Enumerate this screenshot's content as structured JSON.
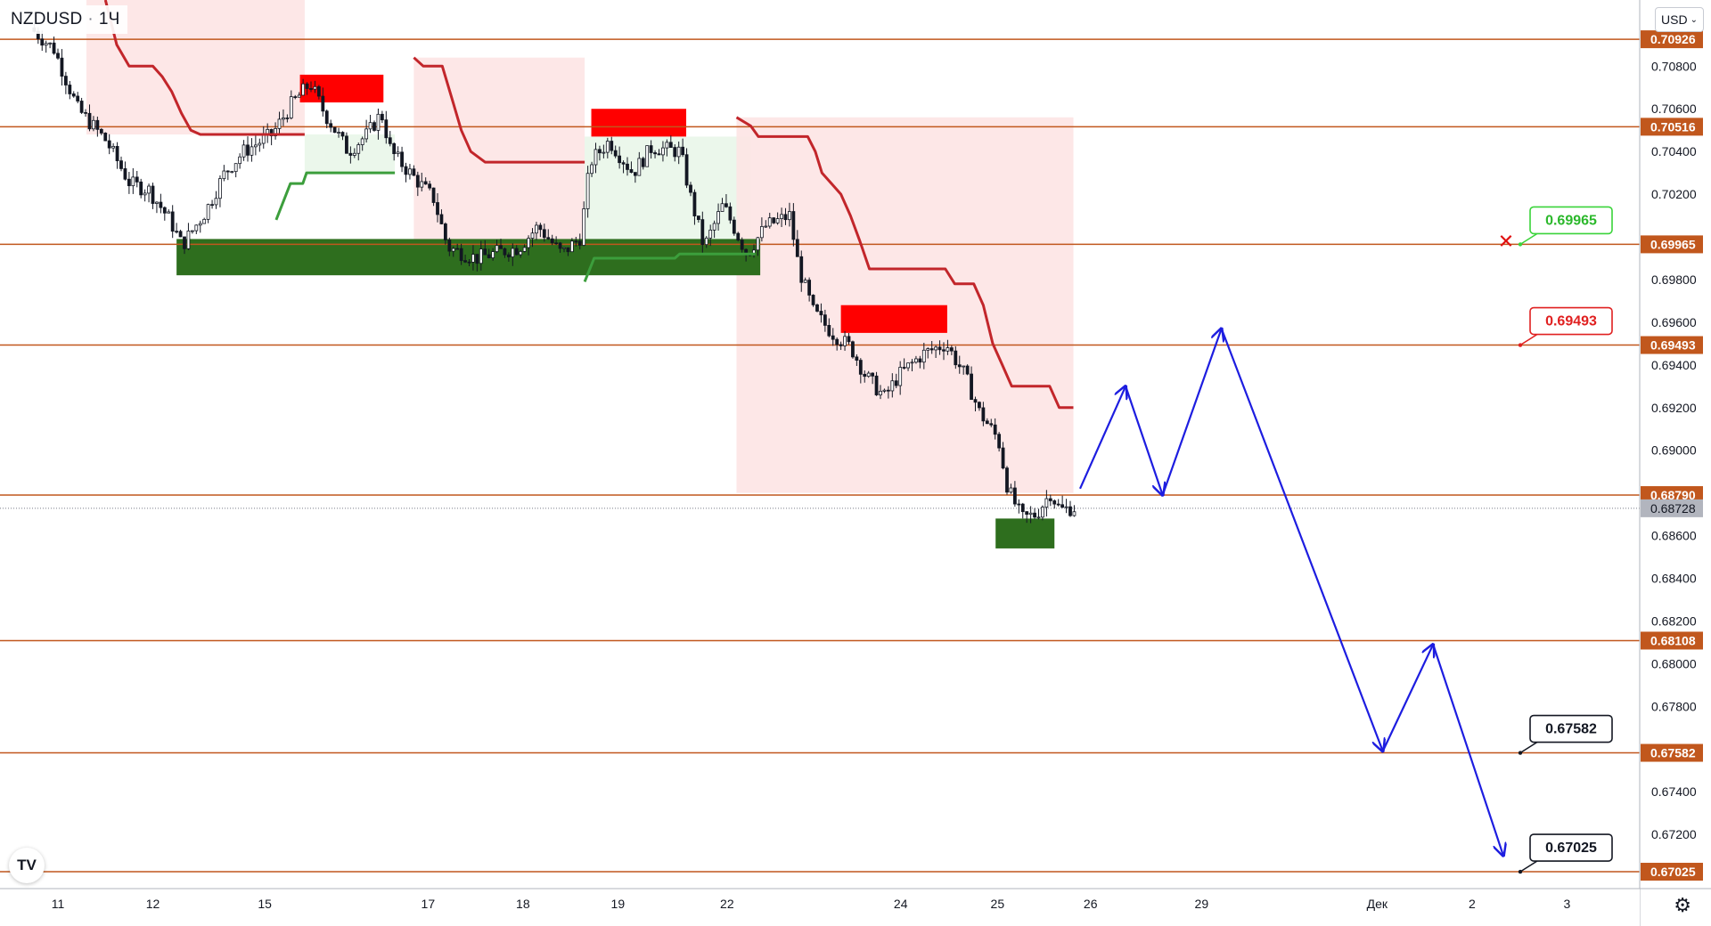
{
  "symbol": {
    "ticker": "NZDUSD",
    "separator": "·",
    "interval": "1Ч"
  },
  "currency": {
    "label": "USD",
    "chevron": "⌄"
  },
  "logo_text": "TV",
  "settings_icon": "gear-icon",
  "colors": {
    "level_line": "#c1571d",
    "level_tag_bg": "#c1571d",
    "current_tag_bg": "#b2b5be",
    "supertrend_down": "#c2262b",
    "supertrend_up": "#3c9e3c",
    "bear_fill": "#fde4e4",
    "bull_fill": "#e9f6e9",
    "supply_zone": "#ff0000",
    "demand_zone": "#2e6e1e",
    "projection": "#1d1de0",
    "candles": "#131722"
  },
  "chart_data": {
    "type": "candlestick",
    "symbol": "NZDUSD",
    "interval": "1Ч",
    "y_axis": {
      "min": 0.6695,
      "max": 0.7111,
      "tick_labels": [
        "0.70800",
        "0.70600",
        "0.70400",
        "0.70200",
        "0.69800",
        "0.69600",
        "0.69400",
        "0.69200",
        "0.69000",
        "0.68600",
        "0.68400",
        "0.68200",
        "0.68000",
        "0.67800",
        "0.67400",
        "0.67200"
      ],
      "tick_values": [
        0.708,
        0.706,
        0.704,
        0.702,
        0.698,
        0.696,
        0.694,
        0.692,
        0.69,
        0.686,
        0.684,
        0.682,
        0.68,
        0.678,
        0.674,
        0.672
      ]
    },
    "x_axis": {
      "labels": [
        "11",
        "12",
        "15",
        "17",
        "18",
        "19",
        "22",
        "24",
        "25",
        "26",
        "29",
        "Дек",
        "2",
        "3"
      ],
      "positions": [
        0.0,
        1.0,
        2.18,
        3.9,
        4.9,
        5.9,
        7.05,
        8.88,
        9.9,
        10.88,
        12.05,
        13.9,
        14.9,
        15.9
      ]
    },
    "levels": [
      {
        "label": "0.70926",
        "value": 0.70926
      },
      {
        "label": "0.70516",
        "value": 0.70516
      },
      {
        "label": "0.69965",
        "value": 0.69965
      },
      {
        "label": "0.69493",
        "value": 0.69493
      },
      {
        "label": "0.68790",
        "value": 0.6879
      },
      {
        "label": "0.68108",
        "value": 0.68108
      },
      {
        "label": "0.67582",
        "value": 0.67582
      },
      {
        "label": "0.67025",
        "value": 0.67025
      }
    ],
    "current_price": {
      "label": "0.68728",
      "value": 0.68728
    },
    "callouts": [
      {
        "label": "0.69965",
        "value": 0.69965,
        "style": "green",
        "marker": "✕"
      },
      {
        "label": "0.69493",
        "value": 0.69493,
        "style": "red"
      },
      {
        "label": "0.67582",
        "value": 0.67582,
        "style": "black"
      },
      {
        "label": "0.67025",
        "value": 0.67025,
        "style": "black"
      }
    ],
    "supply_zones": [
      {
        "x0": 2.55,
        "x1": 3.43,
        "y0": 0.7063,
        "y1": 0.7076
      },
      {
        "x0": 5.62,
        "x1": 6.62,
        "y0": 0.7047,
        "y1": 0.706
      },
      {
        "x0": 8.25,
        "x1": 9.37,
        "y0": 0.6955,
        "y1": 0.6968
      }
    ],
    "demand_zones": [
      {
        "x0": 1.25,
        "x1": 7.4,
        "y0": 0.6982,
        "y1": 0.6999
      },
      {
        "x0": 9.88,
        "x1": 10.5,
        "y0": 0.6854,
        "y1": 0.6868
      }
    ],
    "supertrend": [
      {
        "trend": "down",
        "points": [
          [
            0.5,
            0.7111
          ],
          [
            0.62,
            0.709
          ],
          [
            0.75,
            0.708
          ],
          [
            1.0,
            0.708
          ],
          [
            1.1,
            0.7075
          ],
          [
            1.2,
            0.7068
          ],
          [
            1.3,
            0.7058
          ],
          [
            1.4,
            0.705
          ],
          [
            1.5,
            0.7048
          ],
          [
            2.6,
            0.7048
          ]
        ]
      },
      {
        "trend": "up",
        "points": [
          [
            2.3,
            0.7008
          ],
          [
            2.45,
            0.7025
          ],
          [
            2.58,
            0.7025
          ],
          [
            2.62,
            0.703
          ],
          [
            3.55,
            0.703
          ]
        ]
      },
      {
        "trend": "down",
        "points": [
          [
            3.75,
            0.7084
          ],
          [
            3.85,
            0.708
          ],
          [
            4.05,
            0.708
          ],
          [
            4.15,
            0.7065
          ],
          [
            4.25,
            0.705
          ],
          [
            4.35,
            0.704
          ],
          [
            4.5,
            0.7035
          ],
          [
            5.55,
            0.7035
          ]
        ]
      },
      {
        "trend": "up",
        "points": [
          [
            5.55,
            0.6979
          ],
          [
            5.65,
            0.699
          ],
          [
            6.5,
            0.699
          ],
          [
            6.55,
            0.6992
          ],
          [
            7.35,
            0.6992
          ]
        ]
      },
      {
        "trend": "down",
        "points": [
          [
            7.15,
            0.7056
          ],
          [
            7.3,
            0.7052
          ],
          [
            7.38,
            0.7047
          ],
          [
            7.9,
            0.7047
          ],
          [
            7.98,
            0.704
          ],
          [
            8.05,
            0.703
          ],
          [
            8.15,
            0.7025
          ],
          [
            8.25,
            0.702
          ],
          [
            8.35,
            0.701
          ],
          [
            8.45,
            0.6998
          ],
          [
            8.55,
            0.6985
          ],
          [
            8.7,
            0.6985
          ],
          [
            9.35,
            0.6985
          ],
          [
            9.45,
            0.6978
          ],
          [
            9.65,
            0.6978
          ],
          [
            9.75,
            0.6968
          ],
          [
            9.85,
            0.695
          ],
          [
            9.95,
            0.694
          ],
          [
            10.05,
            0.693
          ],
          [
            10.45,
            0.693
          ],
          [
            10.55,
            0.692
          ],
          [
            10.7,
            0.692
          ]
        ]
      }
    ],
    "trend_fills": [
      {
        "trend": "down",
        "x0": 0.3,
        "x1": 2.6,
        "top": 0.7111,
        "bottom": 0.7048
      },
      {
        "trend": "up",
        "x0": 2.6,
        "x1": 3.55,
        "top": 0.7048,
        "bottom": 0.703
      },
      {
        "trend": "down",
        "x0": 3.75,
        "x1": 5.55,
        "top": 0.7084,
        "bottom": 0.699
      },
      {
        "trend": "up",
        "x0": 5.55,
        "x1": 7.3,
        "top": 0.7047,
        "bottom": 0.699
      },
      {
        "trend": "down",
        "x0": 7.15,
        "x1": 10.7,
        "top": 0.7056,
        "bottom": 0.688
      }
    ],
    "candles": {
      "x_start": -0.25,
      "x_end": 10.72,
      "anchors": [
        [
          -0.25,
          0.7098
        ],
        [
          0.0,
          0.7088
        ],
        [
          0.25,
          0.706
        ],
        [
          0.55,
          0.7045
        ],
        [
          0.8,
          0.7025
        ],
        [
          1.0,
          0.7022
        ],
        [
          1.22,
          0.7008
        ],
        [
          1.35,
          0.6996
        ],
        [
          1.6,
          0.7012
        ],
        [
          1.8,
          0.703
        ],
        [
          2.0,
          0.704
        ],
        [
          2.3,
          0.7048
        ],
        [
          2.5,
          0.7062
        ],
        [
          2.7,
          0.7072
        ],
        [
          2.85,
          0.7058
        ],
        [
          3.1,
          0.704
        ],
        [
          3.3,
          0.7048
        ],
        [
          3.45,
          0.7058
        ],
        [
          3.55,
          0.704
        ],
        [
          3.75,
          0.703
        ],
        [
          4.0,
          0.7018
        ],
        [
          4.15,
          0.6995
        ],
        [
          4.45,
          0.699
        ],
        [
          4.7,
          0.6993
        ],
        [
          4.9,
          0.6995
        ],
        [
          5.1,
          0.7005
        ],
        [
          5.35,
          0.6992
        ],
        [
          5.55,
          0.7
        ],
        [
          5.65,
          0.7035
        ],
        [
          5.85,
          0.7045
        ],
        [
          6.1,
          0.703
        ],
        [
          6.3,
          0.7042
        ],
        [
          6.6,
          0.704
        ],
        [
          6.7,
          0.702
        ],
        [
          6.85,
          0.6995
        ],
        [
          7.05,
          0.7015
        ],
        [
          7.3,
          0.6992
        ],
        [
          7.5,
          0.7005
        ],
        [
          7.75,
          0.701
        ],
        [
          7.85,
          0.6985
        ],
        [
          8.0,
          0.6965
        ],
        [
          8.2,
          0.6955
        ],
        [
          8.4,
          0.6948
        ],
        [
          8.55,
          0.6935
        ],
        [
          8.75,
          0.6925
        ],
        [
          8.9,
          0.6935
        ],
        [
          9.15,
          0.6945
        ],
        [
          9.4,
          0.695
        ],
        [
          9.6,
          0.6935
        ],
        [
          9.75,
          0.6918
        ],
        [
          9.95,
          0.6905
        ],
        [
          10.05,
          0.6882
        ],
        [
          10.2,
          0.6868
        ],
        [
          10.35,
          0.687
        ],
        [
          10.5,
          0.688
        ],
        [
          10.6,
          0.6872
        ],
        [
          10.72,
          0.6873
        ]
      ]
    },
    "projection_path": [
      {
        "from": [
          10.77,
          0.6882
        ],
        "to": [
          11.25,
          0.693
        ]
      },
      {
        "from": [
          11.25,
          0.693
        ],
        "to": [
          11.64,
          0.6879
        ]
      },
      {
        "from": [
          11.64,
          0.6879
        ],
        "to": [
          12.26,
          0.6957
        ]
      },
      {
        "from": [
          12.26,
          0.6957
        ],
        "to": [
          13.96,
          0.6759
        ]
      },
      {
        "from": [
          13.96,
          0.6759
        ],
        "to": [
          14.49,
          0.6809
        ]
      },
      {
        "from": [
          14.49,
          0.6809
        ],
        "to": [
          15.23,
          0.671
        ]
      }
    ]
  }
}
